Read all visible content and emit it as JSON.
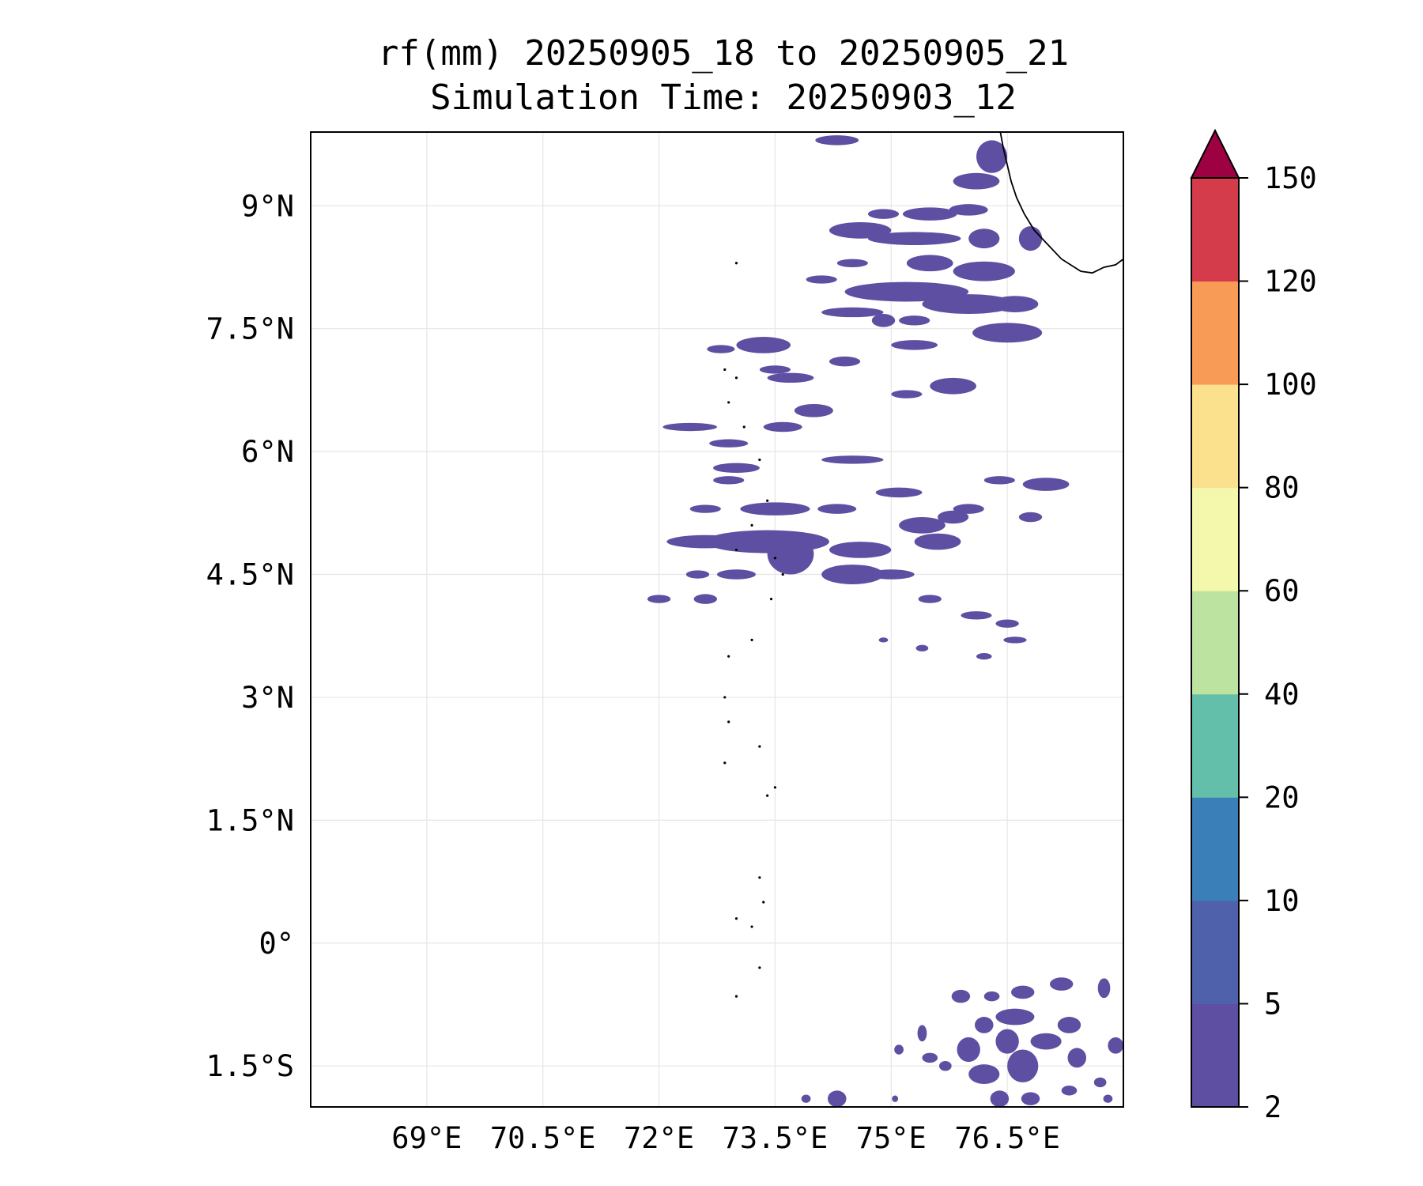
{
  "title": {
    "line1": "rf(mm) 20250905_18 to 20250905_21",
    "line2": "Simulation Time: 20250903_12"
  },
  "map": {
    "lon_range": [
      67.5,
      78.0
    ],
    "lat_range": [
      -2.0,
      9.9
    ],
    "lon_ticks": [
      {
        "value": 69.0,
        "label": "69°E"
      },
      {
        "value": 70.5,
        "label": "70.5°E"
      },
      {
        "value": 72.0,
        "label": "72°E"
      },
      {
        "value": 73.5,
        "label": "73.5°E"
      },
      {
        "value": 75.0,
        "label": "75°E"
      },
      {
        "value": 76.5,
        "label": "76.5°E"
      }
    ],
    "lat_ticks": [
      {
        "value": 9.0,
        "label": "9°N"
      },
      {
        "value": 7.5,
        "label": "7.5°N"
      },
      {
        "value": 6.0,
        "label": "6°N"
      },
      {
        "value": 4.5,
        "label": "4.5°N"
      },
      {
        "value": 3.0,
        "label": "3°N"
      },
      {
        "value": 1.5,
        "label": "1.5°N"
      },
      {
        "value": 0.0,
        "label": "0°"
      },
      {
        "value": -1.5,
        "label": "1.5°S"
      }
    ],
    "grid": true,
    "rain_color": "#5e4fa2",
    "coastline": [
      [
        76.4,
        9.95
      ],
      [
        76.45,
        9.7
      ],
      [
        76.5,
        9.5
      ],
      [
        76.55,
        9.3
      ],
      [
        76.62,
        9.1
      ],
      [
        76.72,
        8.9
      ],
      [
        76.85,
        8.7
      ],
      [
        77.0,
        8.55
      ],
      [
        77.2,
        8.35
      ],
      [
        77.45,
        8.2
      ],
      [
        77.6,
        8.18
      ],
      [
        77.75,
        8.25
      ],
      [
        77.9,
        8.28
      ],
      [
        78.0,
        8.35
      ]
    ],
    "islands": [
      [
        73.0,
        8.3
      ],
      [
        72.85,
        7.0
      ],
      [
        73.0,
        6.9
      ],
      [
        72.9,
        6.6
      ],
      [
        73.1,
        6.3
      ],
      [
        73.3,
        5.9
      ],
      [
        73.4,
        5.4
      ],
      [
        73.2,
        5.1
      ],
      [
        73.0,
        4.8
      ],
      [
        73.5,
        4.7
      ],
      [
        73.6,
        4.5
      ],
      [
        73.45,
        4.2
      ],
      [
        73.2,
        3.7
      ],
      [
        72.9,
        3.5
      ],
      [
        72.85,
        3.0
      ],
      [
        72.9,
        2.7
      ],
      [
        73.3,
        2.4
      ],
      [
        72.85,
        2.2
      ],
      [
        73.5,
        1.9
      ],
      [
        73.4,
        1.8
      ],
      [
        73.3,
        0.8
      ],
      [
        73.35,
        0.5
      ],
      [
        73.0,
        0.3
      ],
      [
        73.2,
        0.2
      ],
      [
        73.3,
        -0.3
      ],
      [
        73.0,
        -0.65
      ]
    ],
    "rain_cells": [
      [
        74.3,
        9.8,
        0.28,
        0.06
      ],
      [
        76.3,
        9.6,
        0.2,
        0.2
      ],
      [
        76.1,
        9.3,
        0.3,
        0.1
      ],
      [
        75.5,
        8.9,
        0.35,
        0.08
      ],
      [
        74.6,
        8.7,
        0.4,
        0.1
      ],
      [
        75.3,
        8.6,
        0.6,
        0.08
      ],
      [
        76.2,
        8.6,
        0.2,
        0.12
      ],
      [
        76.8,
        8.6,
        0.15,
        0.15
      ],
      [
        74.9,
        8.9,
        0.2,
        0.06
      ],
      [
        76.0,
        8.95,
        0.25,
        0.07
      ],
      [
        75.5,
        8.3,
        0.3,
        0.1
      ],
      [
        76.2,
        8.2,
        0.4,
        0.12
      ],
      [
        75.2,
        7.95,
        0.8,
        0.12
      ],
      [
        76.0,
        7.8,
        0.6,
        0.12
      ],
      [
        76.6,
        7.8,
        0.3,
        0.1
      ],
      [
        76.5,
        7.45,
        0.45,
        0.12
      ],
      [
        75.3,
        7.3,
        0.3,
        0.06
      ],
      [
        74.5,
        8.3,
        0.2,
        0.05
      ],
      [
        74.1,
        8.1,
        0.2,
        0.05
      ],
      [
        74.5,
        7.7,
        0.4,
        0.06
      ],
      [
        74.9,
        7.6,
        0.15,
        0.08
      ],
      [
        75.3,
        7.6,
        0.2,
        0.06
      ],
      [
        73.35,
        7.3,
        0.35,
        0.1
      ],
      [
        72.8,
        7.25,
        0.18,
        0.05
      ],
      [
        73.7,
        6.9,
        0.3,
        0.06
      ],
      [
        74.4,
        7.1,
        0.2,
        0.06
      ],
      [
        73.5,
        7.0,
        0.2,
        0.05
      ],
      [
        75.2,
        6.7,
        0.2,
        0.05
      ],
      [
        75.8,
        6.8,
        0.3,
        0.1
      ],
      [
        74.0,
        6.5,
        0.25,
        0.08
      ],
      [
        73.6,
        6.3,
        0.25,
        0.06
      ],
      [
        72.4,
        6.3,
        0.35,
        0.05
      ],
      [
        72.9,
        6.1,
        0.25,
        0.05
      ],
      [
        73.0,
        5.8,
        0.3,
        0.06
      ],
      [
        72.9,
        5.65,
        0.2,
        0.05
      ],
      [
        72.6,
        5.3,
        0.2,
        0.05
      ],
      [
        73.5,
        5.3,
        0.45,
        0.08
      ],
      [
        73.4,
        4.9,
        0.8,
        0.14
      ],
      [
        72.6,
        4.9,
        0.5,
        0.08
      ],
      [
        73.7,
        4.75,
        0.3,
        0.25
      ],
      [
        74.6,
        4.8,
        0.4,
        0.1
      ],
      [
        75.0,
        4.5,
        0.3,
        0.06
      ],
      [
        74.5,
        4.5,
        0.4,
        0.12
      ],
      [
        72.5,
        4.5,
        0.15,
        0.05
      ],
      [
        73.0,
        4.5,
        0.25,
        0.06
      ],
      [
        72.6,
        4.2,
        0.15,
        0.06
      ],
      [
        72.0,
        4.2,
        0.15,
        0.05
      ],
      [
        75.4,
        5.1,
        0.3,
        0.1
      ],
      [
        75.8,
        5.2,
        0.2,
        0.08
      ],
      [
        75.6,
        4.9,
        0.3,
        0.1
      ],
      [
        74.3,
        5.3,
        0.25,
        0.06
      ],
      [
        74.5,
        5.9,
        0.4,
        0.05
      ],
      [
        75.1,
        5.5,
        0.3,
        0.06
      ],
      [
        76.0,
        5.3,
        0.2,
        0.06
      ],
      [
        76.8,
        5.2,
        0.15,
        0.06
      ],
      [
        76.4,
        5.65,
        0.2,
        0.05
      ],
      [
        77.0,
        5.6,
        0.3,
        0.08
      ],
      [
        75.5,
        4.2,
        0.15,
        0.05
      ],
      [
        76.1,
        4.0,
        0.2,
        0.05
      ],
      [
        76.5,
        3.9,
        0.15,
        0.05
      ],
      [
        76.6,
        3.7,
        0.15,
        0.04
      ],
      [
        76.2,
        3.5,
        0.1,
        0.04
      ],
      [
        75.4,
        3.6,
        0.08,
        0.04
      ],
      [
        74.9,
        3.7,
        0.06,
        0.03
      ],
      [
        75.9,
        -0.65,
        0.12,
        0.08
      ],
      [
        76.3,
        -0.65,
        0.1,
        0.06
      ],
      [
        76.7,
        -0.6,
        0.15,
        0.08
      ],
      [
        77.2,
        -0.5,
        0.15,
        0.08
      ],
      [
        77.75,
        -0.55,
        0.08,
        0.12
      ],
      [
        76.6,
        -0.9,
        0.25,
        0.1
      ],
      [
        76.2,
        -1.0,
        0.12,
        0.1
      ],
      [
        76.5,
        -1.2,
        0.15,
        0.15
      ],
      [
        76.0,
        -1.3,
        0.15,
        0.15
      ],
      [
        75.4,
        -1.1,
        0.06,
        0.1
      ],
      [
        75.1,
        -1.3,
        0.06,
        0.06
      ],
      [
        75.5,
        -1.4,
        0.1,
        0.06
      ],
      [
        75.7,
        -1.5,
        0.08,
        0.06
      ],
      [
        76.2,
        -1.6,
        0.2,
        0.12
      ],
      [
        76.7,
        -1.5,
        0.2,
        0.2
      ],
      [
        77.0,
        -1.2,
        0.2,
        0.1
      ],
      [
        77.3,
        -1.0,
        0.15,
        0.1
      ],
      [
        77.4,
        -1.4,
        0.12,
        0.12
      ],
      [
        76.4,
        -1.9,
        0.12,
        0.1
      ],
      [
        76.8,
        -1.9,
        0.12,
        0.08
      ],
      [
        77.3,
        -1.8,
        0.1,
        0.06
      ],
      [
        77.7,
        -1.7,
        0.08,
        0.06
      ],
      [
        77.8,
        -1.9,
        0.06,
        0.05
      ],
      [
        77.9,
        -1.25,
        0.1,
        0.1
      ],
      [
        74.3,
        -1.9,
        0.12,
        0.1
      ],
      [
        73.9,
        -1.9,
        0.06,
        0.05
      ],
      [
        75.05,
        -1.9,
        0.04,
        0.04
      ]
    ]
  },
  "colorbar": {
    "levels": [
      2,
      5,
      10,
      20,
      40,
      60,
      80,
      100,
      120,
      150
    ],
    "colors": [
      "#5e4fa2",
      "#4f61ab",
      "#3a7fb8",
      "#64bfaa",
      "#bde3a0",
      "#f3f8ad",
      "#fbe08d",
      "#f89b57",
      "#d43c4b"
    ],
    "extend_color": "#9e0142"
  }
}
